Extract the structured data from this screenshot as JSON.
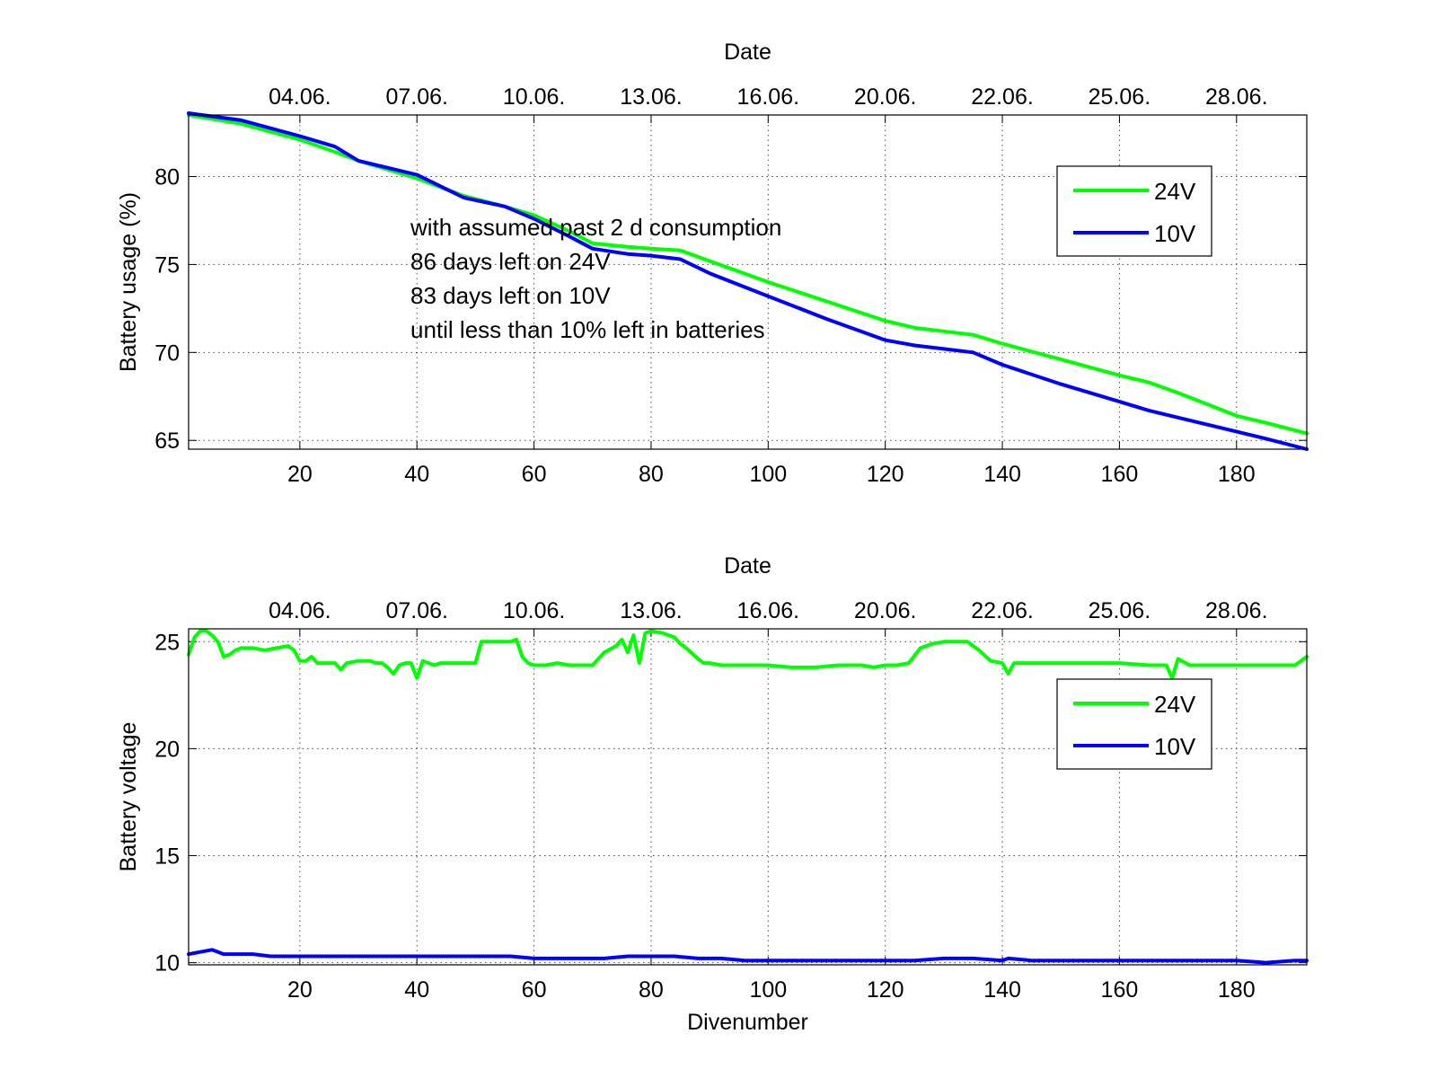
{
  "chart_data": [
    {
      "type": "line",
      "title": "",
      "xlabel": "",
      "ylabel": "Battery usage (%)",
      "top_axis_label": "Date",
      "xlim": [
        1,
        192
      ],
      "ylim": [
        64.5,
        83.5
      ],
      "x_ticks": [
        20,
        40,
        60,
        80,
        100,
        120,
        140,
        160,
        180
      ],
      "y_ticks": [
        65,
        70,
        75,
        80
      ],
      "top_ticks": [
        {
          "x": 20,
          "label": "04.06."
        },
        {
          "x": 40,
          "label": "07.06."
        },
        {
          "x": 60,
          "label": "10.06."
        },
        {
          "x": 80,
          "label": "13.06."
        },
        {
          "x": 100,
          "label": "16.06."
        },
        {
          "x": 120,
          "label": "20.06."
        },
        {
          "x": 140,
          "label": "22.06."
        },
        {
          "x": 160,
          "label": "25.06."
        },
        {
          "x": 180,
          "label": "28.06."
        }
      ],
      "grid": true,
      "legend_position": "top-right",
      "annotations": [
        "with assumed past 2 d consumption",
        "86 days left on 24V",
        "83 days left on 10V",
        "until less than 10% left in batteries"
      ],
      "series": [
        {
          "name": "24V",
          "color": "#00ff00",
          "x": [
            1,
            10,
            20,
            26,
            30,
            40,
            48,
            55,
            60,
            66,
            70,
            76,
            80,
            85,
            90,
            100,
            110,
            120,
            125,
            130,
            135,
            140,
            150,
            160,
            165,
            170,
            180,
            185,
            192
          ],
          "y": [
            83.5,
            83.0,
            82.1,
            81.4,
            80.9,
            79.9,
            78.9,
            78.3,
            77.8,
            76.9,
            76.2,
            76.0,
            75.9,
            75.8,
            75.2,
            74.0,
            72.9,
            71.8,
            71.4,
            71.2,
            71.0,
            70.5,
            69.6,
            68.7,
            68.3,
            67.7,
            66.4,
            66.0,
            65.4
          ]
        },
        {
          "name": "10V",
          "color": "#0000ff",
          "x": [
            1,
            10,
            20,
            26,
            30,
            40,
            48,
            55,
            60,
            66,
            70,
            76,
            80,
            85,
            90,
            100,
            110,
            120,
            125,
            130,
            135,
            140,
            150,
            160,
            165,
            170,
            180,
            185,
            192
          ],
          "y": [
            83.6,
            83.2,
            82.3,
            81.7,
            80.9,
            80.1,
            78.8,
            78.3,
            77.6,
            76.6,
            75.9,
            75.6,
            75.5,
            75.3,
            74.5,
            73.2,
            71.9,
            70.7,
            70.4,
            70.2,
            70.0,
            69.3,
            68.2,
            67.2,
            66.7,
            66.3,
            65.5,
            65.1,
            64.5
          ]
        }
      ]
    },
    {
      "type": "line",
      "title": "",
      "xlabel": "Divenumber",
      "ylabel": "Battery voltage",
      "top_axis_label": "Date",
      "xlim": [
        1,
        192
      ],
      "ylim": [
        9.9,
        25.6
      ],
      "x_ticks": [
        20,
        40,
        60,
        80,
        100,
        120,
        140,
        160,
        180
      ],
      "y_ticks": [
        10,
        15,
        20,
        25
      ],
      "top_ticks": [
        {
          "x": 20,
          "label": "04.06."
        },
        {
          "x": 40,
          "label": "07.06."
        },
        {
          "x": 60,
          "label": "10.06."
        },
        {
          "x": 80,
          "label": "13.06."
        },
        {
          "x": 100,
          "label": "16.06."
        },
        {
          "x": 120,
          "label": "20.06."
        },
        {
          "x": 140,
          "label": "22.06."
        },
        {
          "x": 160,
          "label": "25.06."
        },
        {
          "x": 180,
          "label": "28.06."
        }
      ],
      "grid": true,
      "legend_position": "top-right",
      "series": [
        {
          "name": "24V",
          "color": "#00ff00",
          "x": [
            1,
            2,
            3,
            4,
            5,
            6,
            7,
            8,
            9,
            10,
            12,
            14,
            16,
            18,
            19,
            20,
            21,
            22,
            23,
            25,
            26,
            27,
            28,
            30,
            32,
            33,
            34,
            35,
            36,
            37,
            38,
            39,
            40,
            41,
            42,
            43,
            44,
            46,
            48,
            50,
            51,
            52,
            54,
            56,
            57,
            58,
            59,
            60,
            62,
            64,
            66,
            68,
            70,
            72,
            74,
            75,
            76,
            77,
            78,
            79,
            80,
            82,
            84,
            85,
            86,
            88,
            89,
            90,
            92,
            94,
            96,
            98,
            100,
            104,
            108,
            112,
            116,
            118,
            120,
            122,
            124,
            126,
            128,
            130,
            132,
            134,
            136,
            138,
            140,
            141,
            142,
            144,
            150,
            160,
            165,
            168,
            169,
            170,
            172,
            176,
            180,
            185,
            190,
            192
          ],
          "y": [
            24.4,
            25.2,
            25.5,
            25.5,
            25.3,
            25.0,
            24.3,
            24.4,
            24.6,
            24.7,
            24.7,
            24.6,
            24.7,
            24.8,
            24.6,
            24.1,
            24.1,
            24.3,
            24.0,
            24.0,
            24.0,
            23.7,
            24.0,
            24.1,
            24.1,
            24.0,
            24.0,
            23.8,
            23.5,
            23.9,
            24.0,
            24.0,
            23.3,
            24.1,
            24.0,
            23.9,
            24.0,
            24.0,
            24.0,
            24.0,
            25.0,
            25.0,
            25.0,
            25.0,
            25.1,
            24.3,
            24.0,
            23.9,
            23.9,
            24.0,
            23.9,
            23.9,
            23.9,
            24.5,
            24.8,
            25.1,
            24.5,
            25.3,
            24.0,
            25.4,
            25.5,
            25.4,
            25.2,
            24.9,
            24.7,
            24.2,
            24.0,
            24.0,
            23.9,
            23.9,
            23.9,
            23.9,
            23.9,
            23.8,
            23.8,
            23.9,
            23.9,
            23.8,
            23.9,
            23.9,
            24.0,
            24.7,
            24.9,
            25.0,
            25.0,
            25.0,
            24.6,
            24.1,
            24.0,
            23.5,
            24.0,
            24.0,
            24.0,
            24.0,
            23.9,
            23.9,
            23.3,
            24.2,
            23.9,
            23.9,
            23.9,
            23.9,
            23.9,
            24.3
          ]
        },
        {
          "name": "10V",
          "color": "#0000ff",
          "x": [
            1,
            3,
            5,
            7,
            9,
            12,
            15,
            18,
            20,
            24,
            28,
            32,
            36,
            40,
            44,
            48,
            52,
            56,
            60,
            66,
            72,
            76,
            80,
            84,
            88,
            92,
            96,
            100,
            110,
            120,
            125,
            130,
            135,
            140,
            141,
            145,
            150,
            160,
            170,
            176,
            180,
            185,
            190,
            192
          ],
          "y": [
            10.4,
            10.5,
            10.6,
            10.4,
            10.4,
            10.4,
            10.3,
            10.3,
            10.3,
            10.3,
            10.3,
            10.3,
            10.3,
            10.3,
            10.3,
            10.3,
            10.3,
            10.3,
            10.2,
            10.2,
            10.2,
            10.3,
            10.3,
            10.3,
            10.2,
            10.2,
            10.1,
            10.1,
            10.1,
            10.1,
            10.1,
            10.2,
            10.2,
            10.1,
            10.2,
            10.1,
            10.1,
            10.1,
            10.1,
            10.1,
            10.1,
            10.0,
            10.1,
            10.1
          ]
        }
      ]
    }
  ]
}
